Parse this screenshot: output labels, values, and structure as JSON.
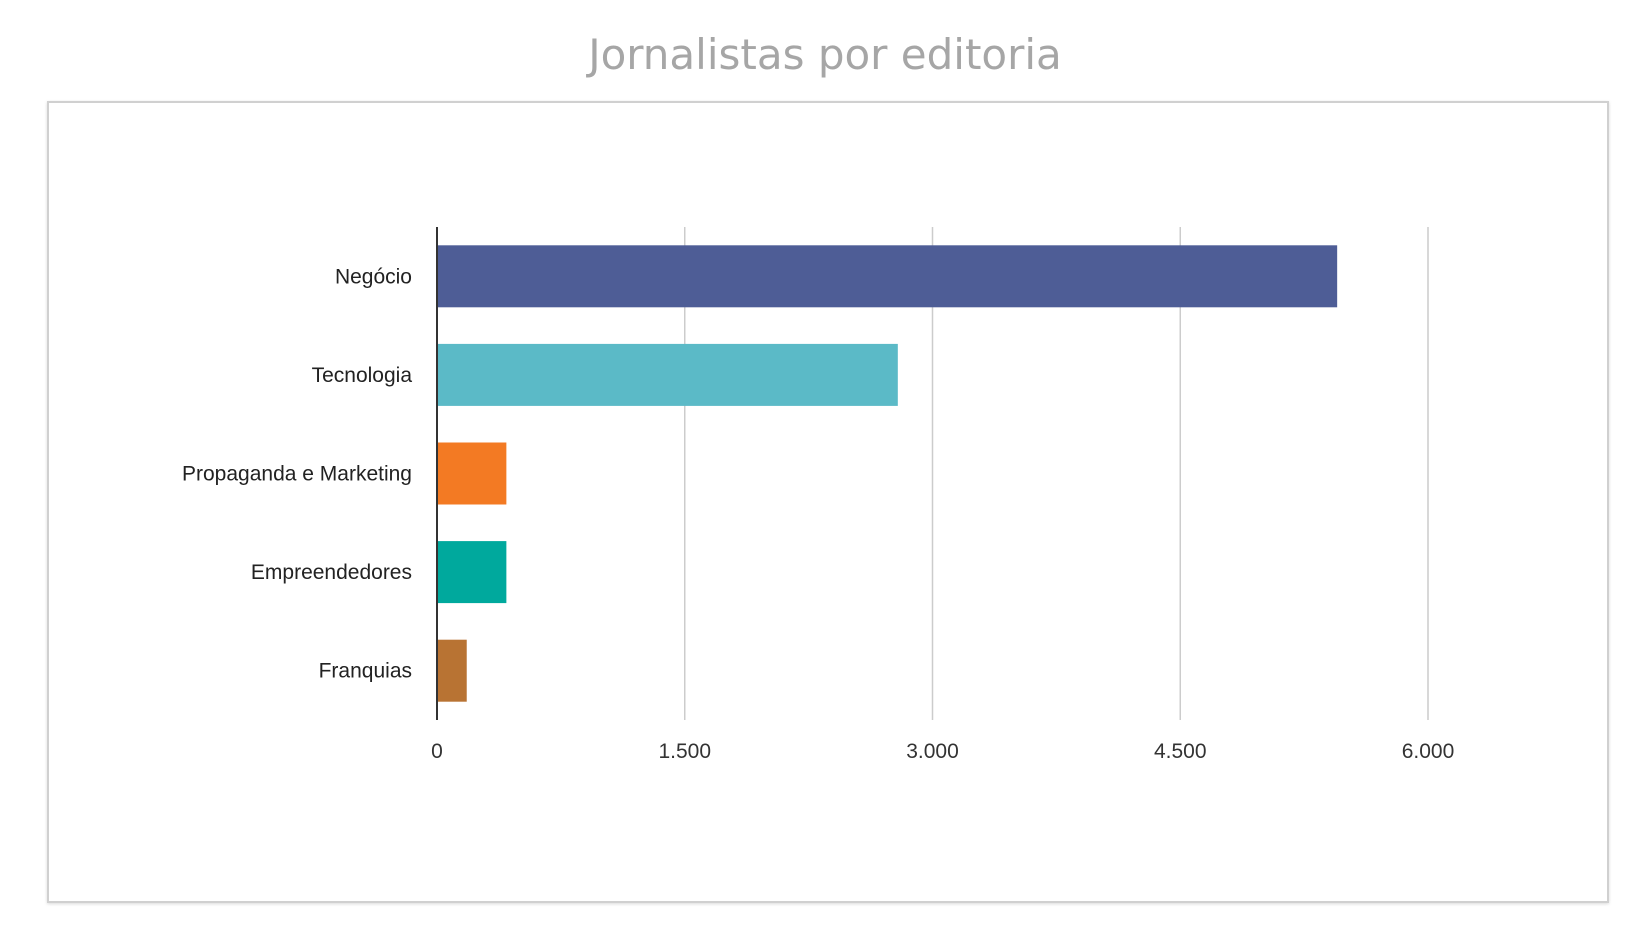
{
  "chart_data": {
    "type": "bar",
    "orientation": "horizontal",
    "title": "Jornalistas por editoria",
    "categories": [
      "Negócio",
      "Tecnologia",
      "Propaganda e Marketing",
      "Empreendedores",
      "Franquias"
    ],
    "values": [
      5450,
      2790,
      420,
      420,
      180
    ],
    "colors": [
      "#4e5d96",
      "#5bbac7",
      "#f37a23",
      "#00a99d",
      "#b87333"
    ],
    "xlim": [
      0,
      6000
    ],
    "xticks": [
      0,
      1500,
      3000,
      4500,
      6000
    ],
    "xtick_labels": [
      "0",
      "1.500",
      "3.000",
      "4.500",
      "6.000"
    ],
    "grid": true,
    "xlabel": "",
    "ylabel": ""
  }
}
